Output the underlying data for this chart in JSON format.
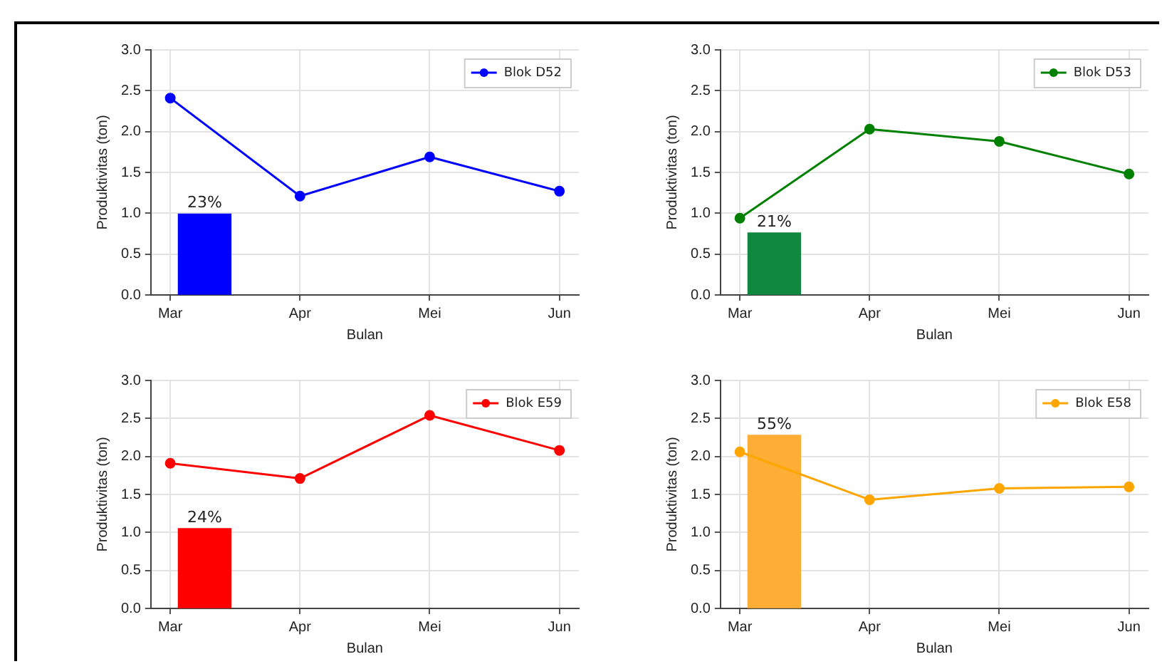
{
  "chart_data": [
    {
      "type": "line",
      "categories": [
        "Mar",
        "Apr",
        "Mei",
        "Jun"
      ],
      "xlabel": "Bulan",
      "ylabel": "Produktivitas (ton)",
      "ylim": [
        0,
        3
      ],
      "yticks": [
        {
          "value": 0,
          "label": "0.0"
        },
        {
          "value": 0.5,
          "label": "0.5"
        },
        {
          "value": 1,
          "label": "1.0"
        },
        {
          "value": 1.5,
          "label": "1.5"
        },
        {
          "value": 2,
          "label": "2.0"
        },
        {
          "value": 2.5,
          "label": "2.5"
        },
        {
          "value": 3,
          "label": "3.0"
        }
      ],
      "grid": true,
      "legend": "top right",
      "marker": "circle",
      "series": [
        {
          "name": "Blok D52",
          "color": "#0000ff",
          "values": [
            2.41,
            1.21,
            1.69,
            1.27
          ]
        },
        {
          "type": "bar",
          "color": "#0000ff",
          "values": [
            0.99,
            null,
            null,
            null
          ]
        }
      ],
      "annotations": [
        "23%"
      ]
    },
    {
      "type": "line",
      "categories": [
        "Mar",
        "Apr",
        "Mei",
        "Jun"
      ],
      "xlabel": "Bulan",
      "ylabel": "Produktivitas (ton)",
      "ylim": [
        0,
        3
      ],
      "yticks": [
        {
          "value": 0,
          "label": "0.0"
        },
        {
          "value": 0.5,
          "label": "0.5"
        },
        {
          "value": 1,
          "label": "1.0"
        },
        {
          "value": 1.5,
          "label": "1.5"
        },
        {
          "value": 2,
          "label": "2.0"
        },
        {
          "value": 2.5,
          "label": "2.5"
        },
        {
          "value": 3,
          "label": "3.0"
        }
      ],
      "grid": true,
      "legend": "top right",
      "marker": "circle",
      "series": [
        {
          "name": "Blok D53",
          "color": "#008000",
          "values": [
            0.94,
            2.03,
            1.88,
            1.48
          ]
        },
        {
          "type": "bar",
          "color": "#10893e",
          "values": [
            0.76,
            null,
            null,
            null
          ]
        }
      ],
      "annotations": [
        "21%"
      ]
    },
    {
      "type": "line",
      "categories": [
        "Mar",
        "Apr",
        "Mei",
        "Jun"
      ],
      "xlabel": "Bulan",
      "ylabel": "Produktivitas (ton)",
      "ylim": [
        0,
        3
      ],
      "yticks": [
        {
          "value": 0,
          "label": "0.0"
        },
        {
          "value": 0.5,
          "label": "0.5"
        },
        {
          "value": 1,
          "label": "1.0"
        },
        {
          "value": 1.5,
          "label": "1.5"
        },
        {
          "value": 2,
          "label": "2.0"
        },
        {
          "value": 2.5,
          "label": "2.5"
        },
        {
          "value": 3,
          "label": "3.0"
        }
      ],
      "grid": true,
      "legend": "top right",
      "marker": "circle",
      "series": [
        {
          "name": "Blok E59",
          "color": "#ff0000",
          "values": [
            1.91,
            1.71,
            2.54,
            2.08
          ]
        },
        {
          "type": "bar",
          "color": "#ff0000",
          "values": [
            1.05,
            null,
            null,
            null
          ]
        }
      ],
      "annotations": [
        "24%"
      ]
    },
    {
      "type": "line",
      "categories": [
        "Mar",
        "Apr",
        "Mei",
        "Jun"
      ],
      "xlabel": "Bulan",
      "ylabel": "Produktivitas (ton)",
      "ylim": [
        0,
        3
      ],
      "yticks": [
        {
          "value": 0,
          "label": "0.0"
        },
        {
          "value": 0.5,
          "label": "0.5"
        },
        {
          "value": 1,
          "label": "1.0"
        },
        {
          "value": 1.5,
          "label": "1.5"
        },
        {
          "value": 2,
          "label": "2.0"
        },
        {
          "value": 2.5,
          "label": "2.5"
        },
        {
          "value": 3,
          "label": "3.0"
        }
      ],
      "grid": true,
      "legend": "top right",
      "marker": "circle",
      "series": [
        {
          "name": "Blok E58",
          "color": "#ffa500",
          "values": [
            2.06,
            1.43,
            1.58,
            1.6
          ]
        },
        {
          "type": "bar",
          "color": "#ffae35",
          "values": [
            2.28,
            null,
            null,
            null
          ]
        }
      ],
      "annotations": [
        "55%"
      ]
    }
  ]
}
